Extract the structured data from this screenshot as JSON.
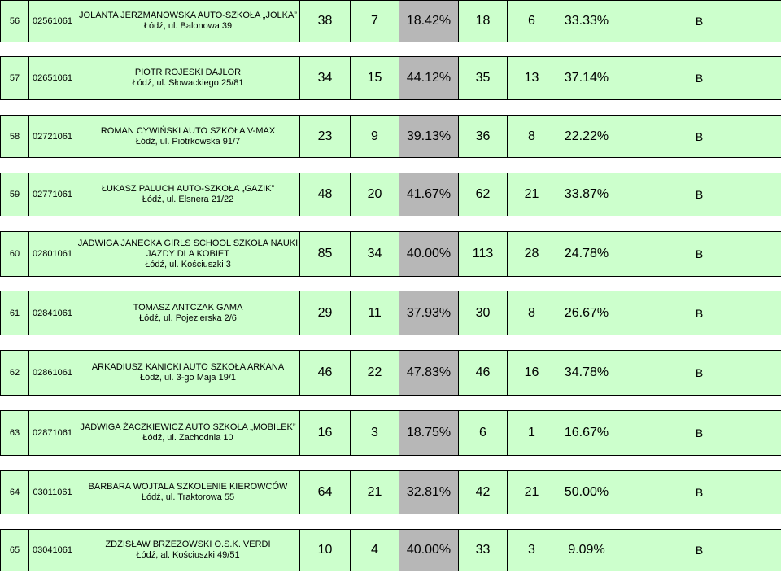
{
  "rows": [
    {
      "lp": "56",
      "code": "02561061",
      "name_lines": [
        "JOLANTA JERZMANOWSKA AUTO-SZKOŁA „JOLKA”"
      ],
      "address": "Łódź, ul. Balonowa 39",
      "n1": "38",
      "n2": "7",
      "pct1": "18.42%",
      "n3": "18",
      "n4": "6",
      "pct2": "33.33%",
      "category": "B"
    },
    {
      "lp": "57",
      "code": "02651061",
      "name_lines": [
        "PIOTR ROJESKI DAJLOR"
      ],
      "address": "Łódź, ul. Słowackiego 25/81",
      "n1": "34",
      "n2": "15",
      "pct1": "44.12%",
      "n3": "35",
      "n4": "13",
      "pct2": "37.14%",
      "category": "B"
    },
    {
      "lp": "58",
      "code": "02721061",
      "name_lines": [
        "ROMAN CYWIŃSKI AUTO SZKOŁA V-MAX"
      ],
      "address": "Łódź, ul. Piotrkowska 91/7",
      "n1": "23",
      "n2": "9",
      "pct1": "39.13%",
      "n3": "36",
      "n4": "8",
      "pct2": "22.22%",
      "category": "B"
    },
    {
      "lp": "59",
      "code": "02771061",
      "name_lines": [
        "ŁUKASZ PALUCH AUTO-SZKOŁA „GAZIK”"
      ],
      "address": "Łódź, ul. Elsnera 21/22",
      "n1": "48",
      "n2": "20",
      "pct1": "41.67%",
      "n3": "62",
      "n4": "21",
      "pct2": "33.87%",
      "category": "B"
    },
    {
      "lp": "60",
      "code": "02801061",
      "name_lines": [
        "JADWIGA JANECKA GIRLS SCHOOL SZKOŁA NAUKI",
        "JAZDY DLA KOBIET"
      ],
      "address": "Łódź, ul. Kościuszki 3",
      "n1": "85",
      "n2": "34",
      "pct1": "40.00%",
      "n3": "113",
      "n4": "28",
      "pct2": "24.78%",
      "category": "B"
    },
    {
      "lp": "61",
      "code": "02841061",
      "name_lines": [
        "TOMASZ ANTCZAK GAMA"
      ],
      "address": "Łódź, ul. Pojezierska 2/6",
      "n1": "29",
      "n2": "11",
      "pct1": "37.93%",
      "n3": "30",
      "n4": "8",
      "pct2": "26.67%",
      "category": "B"
    },
    {
      "lp": "62",
      "code": "02861061",
      "name_lines": [
        "ARKADIUSZ KANICKI AUTO SZKOŁA ARKANA"
      ],
      "address": "Łódź, ul. 3-go Maja 19/1",
      "n1": "46",
      "n2": "22",
      "pct1": "47.83%",
      "n3": "46",
      "n4": "16",
      "pct2": "34.78%",
      "category": "B"
    },
    {
      "lp": "63",
      "code": "02871061",
      "name_lines": [
        "JADWIGA ŻACZKIEWICZ AUTO SZKOŁA „MOBILEK”"
      ],
      "address": "Łódź, ul. Zachodnia 10",
      "n1": "16",
      "n2": "3",
      "pct1": "18.75%",
      "n3": "6",
      "n4": "1",
      "pct2": "16.67%",
      "category": "B"
    },
    {
      "lp": "64",
      "code": "03011061",
      "name_lines": [
        "BARBARA WOJTALA SZKOLENIE KIEROWCÓW"
      ],
      "address": "Łódź, ul. Traktorowa 55",
      "n1": "64",
      "n2": "21",
      "pct1": "32.81%",
      "n3": "42",
      "n4": "21",
      "pct2": "50.00%",
      "category": "B"
    },
    {
      "lp": "65",
      "code": "03041061",
      "name_lines": [
        "ZDZISŁAW BRZEZOWSKI O.S.K. VERDI"
      ],
      "address": "Łódź, al. Kościuszki 49/51",
      "n1": "10",
      "n2": "4",
      "pct1": "40.00%",
      "n3": "33",
      "n4": "3",
      "pct2": "9.09%",
      "category": "B"
    }
  ],
  "colors": {
    "row_background": "#ccffcc",
    "pct_background": "#b7b7b7",
    "border": "#000000"
  }
}
